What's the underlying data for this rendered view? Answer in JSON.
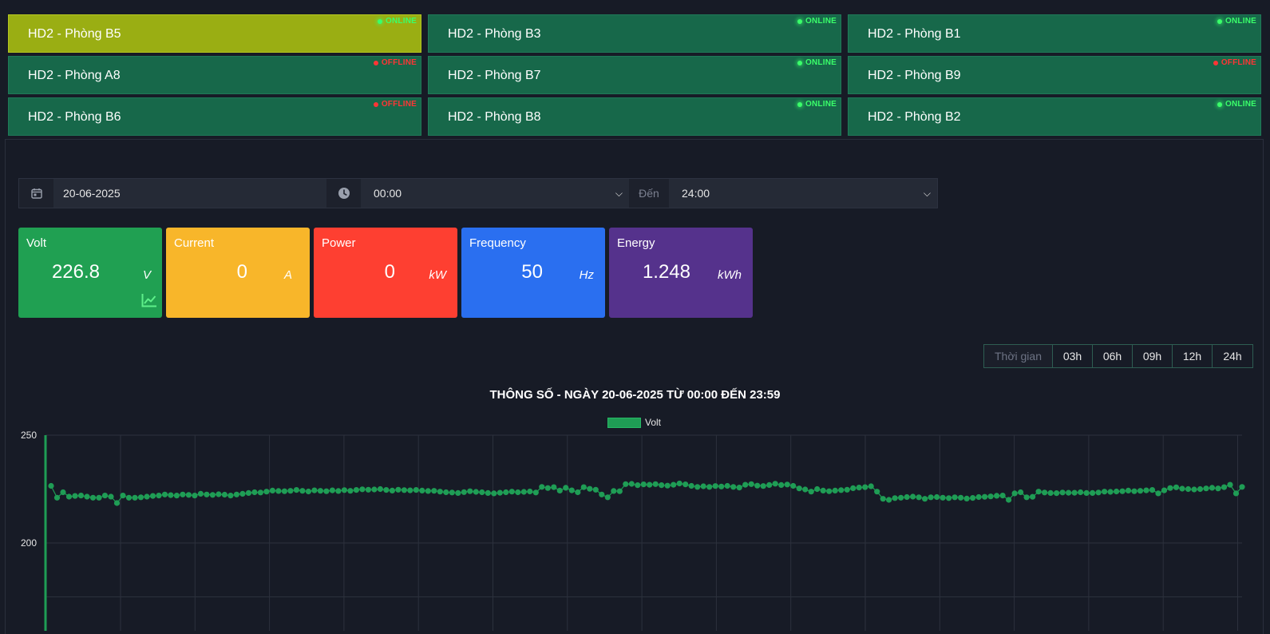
{
  "rooms": [
    {
      "name": "HD2 - Phòng B5",
      "status": "ONLINE",
      "online": true,
      "active": true
    },
    {
      "name": "HD2 - Phòng B3",
      "status": "ONLINE",
      "online": true,
      "active": false
    },
    {
      "name": "HD2 - Phòng B1",
      "status": "ONLINE",
      "online": true,
      "active": false
    },
    {
      "name": "HD2 - Phòng A8",
      "status": "OFFLINE",
      "online": false,
      "active": false
    },
    {
      "name": "HD2 - Phòng B7",
      "status": "ONLINE",
      "online": true,
      "active": false
    },
    {
      "name": "HD2 - Phòng B9",
      "status": "OFFLINE",
      "online": false,
      "active": false
    },
    {
      "name": "HD2 - Phòng B6",
      "status": "OFFLINE",
      "online": false,
      "active": false
    },
    {
      "name": "HD2 - Phòng B8",
      "status": "ONLINE",
      "online": true,
      "active": false
    },
    {
      "name": "HD2 - Phòng B2",
      "status": "ONLINE",
      "online": true,
      "active": false
    }
  ],
  "filters": {
    "date": "20-06-2025",
    "from_time": "00:00",
    "to_label": "Đến",
    "to_time": "24:00"
  },
  "metrics": [
    {
      "label": "Volt",
      "value": "226.8",
      "unit": "V",
      "color": "#20a052",
      "trend_icon": "chart-line-icon"
    },
    {
      "label": "Current",
      "value": "0",
      "unit": "A",
      "color": "#f8b62a"
    },
    {
      "label": "Power",
      "value": "0",
      "unit": "kW",
      "color": "#fe3f31"
    },
    {
      "label": "Frequency",
      "value": "50",
      "unit": "Hz",
      "color": "#2a6ff0"
    },
    {
      "label": "Energy",
      "value": "1.248",
      "unit": "kWh",
      "color": "#55328c"
    }
  ],
  "time_range": {
    "label": "Thời gian",
    "options": [
      "03h",
      "06h",
      "09h",
      "12h",
      "24h"
    ]
  },
  "chart_data": {
    "type": "line",
    "title": "THÔNG SỐ -  NGÀY 20-06-2025  TỪ 00:00 ĐẾN 23:59",
    "series": [
      {
        "name": "Volt",
        "color": "#1f9d55",
        "values": [
          226.5,
          221.0,
          223.5,
          221.5,
          221.8,
          222.0,
          221.5,
          221.0,
          221.0,
          222.0,
          221.5,
          218.5,
          222.0,
          221.0,
          221.0,
          221.2,
          221.5,
          221.8,
          222.0,
          222.5,
          222.2,
          222.0,
          222.5,
          222.3,
          222.0,
          222.8,
          222.5,
          222.3,
          222.6,
          222.4,
          222.0,
          222.5,
          222.8,
          223.2,
          223.5,
          223.4,
          223.8,
          224.3,
          224.1,
          224.0,
          224.2,
          224.6,
          224.2,
          223.9,
          224.4,
          224.2,
          224.0,
          224.4,
          224.1,
          224.5,
          224.2,
          224.6,
          224.9,
          224.7,
          224.8,
          225.0,
          224.6,
          224.3,
          224.7,
          224.5,
          224.4,
          224.6,
          224.3,
          224.1,
          224.2,
          223.8,
          223.5,
          223.4,
          223.2,
          223.6,
          224.0,
          223.7,
          223.5,
          223.2,
          223.0,
          223.3,
          223.5,
          223.8,
          223.5,
          223.7,
          223.9,
          223.4,
          226.0,
          225.5,
          225.9,
          224.3,
          225.6,
          224.4,
          223.5,
          225.9,
          225.1,
          224.7,
          222.5,
          221.2,
          224.1,
          224.0,
          227.3,
          227.4,
          226.8,
          227.2,
          227.0,
          227.3,
          226.8,
          226.6,
          227.0,
          227.6,
          227.2,
          226.5,
          226.0,
          226.3,
          226.0,
          226.4,
          226.2,
          226.5,
          226.0,
          225.7,
          227.0,
          227.3,
          226.6,
          226.4,
          226.9,
          227.5,
          226.9,
          227.1,
          226.5,
          225.3,
          224.8,
          223.8,
          225.0,
          224.3,
          224.0,
          224.3,
          224.5,
          224.7,
          225.4,
          225.7,
          225.9,
          226.3,
          223.8,
          220.5,
          220.0,
          220.8,
          221.0,
          221.3,
          221.5,
          221.2,
          220.5,
          221.2,
          221.3,
          221.0,
          220.8,
          221.2,
          221.0,
          220.6,
          220.9,
          221.3,
          221.4,
          221.6,
          221.9,
          222.0,
          220.0,
          223.0,
          223.5,
          221.2,
          221.4,
          223.8,
          223.4,
          223.2,
          223.1,
          223.4,
          223.3,
          223.3,
          223.5,
          223.2,
          223.2,
          223.4,
          223.8,
          223.7,
          223.9,
          224.0,
          224.3,
          224.0,
          224.2,
          224.4,
          224.6,
          223.0,
          224.4,
          225.5,
          225.8,
          225.2,
          225.0,
          224.8,
          225.0,
          225.3,
          225.6,
          225.3,
          225.9,
          227.0,
          223.0,
          226.0
        ]
      }
    ],
    "y_ticks": [
      250,
      200
    ],
    "ylim": [
      155,
      250
    ],
    "legend": "top-center",
    "grid": true
  }
}
